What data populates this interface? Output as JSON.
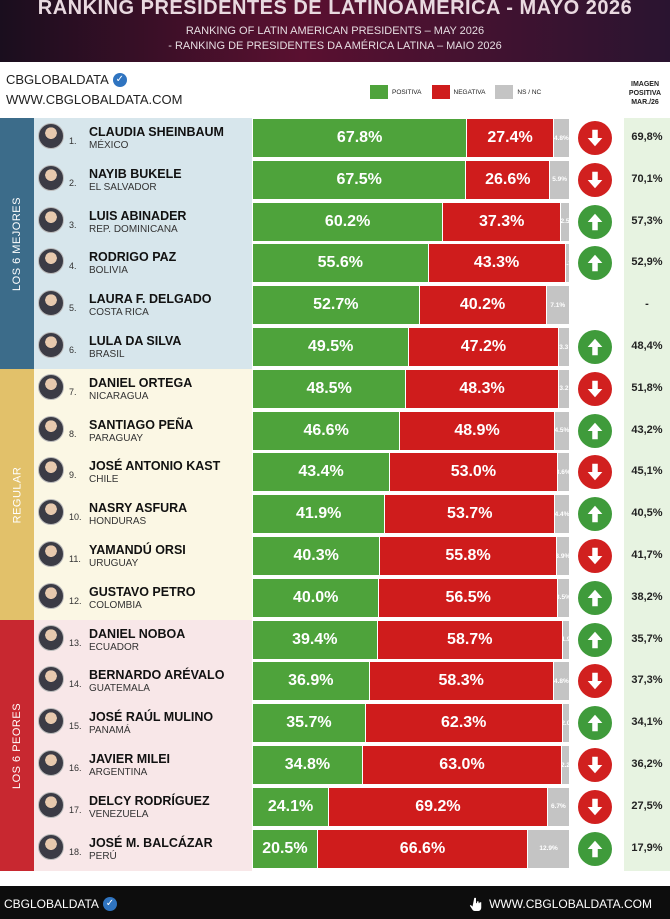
{
  "header": {
    "title": "RANKING PRESIDENTES DE LATINOAMÉRICA - MAYO 2026",
    "subtitle_en": "RANKING OF LATIN AMERICAN PRESIDENTS – MAY 2026",
    "subtitle_pt": "- RANKING DE PRESIDENTES DA AMÉRICA LATINA – MAIO 2026"
  },
  "brand": {
    "name": "CBGLOBALDATA",
    "url": "WWW.CBGLOBALDATA.COM"
  },
  "legend": {
    "positive": "POSITIVA",
    "negative": "NEGATIVA",
    "nsnc": "NS / NC"
  },
  "image_column_header": [
    "IMAGEN",
    "POSITIVA",
    "MAR./26"
  ],
  "sections": {
    "best": "LOS 6 MEJORES",
    "regular": "REGULAR",
    "worst": "LOS 6 PEORES"
  },
  "colors": {
    "positive": "#4ea33b",
    "negative": "#cf1c1c",
    "nsnc": "#c4c4c4",
    "best_band": "#3c6c8a",
    "regular_band": "#e2c16a",
    "worst_band": "#c82830"
  },
  "chart_data": {
    "type": "bar",
    "stacked": true,
    "orientation": "horizontal",
    "series_names": [
      "POSITIVA",
      "NEGATIVA",
      "NS / NC"
    ],
    "rows": [
      {
        "rank": "1.",
        "name": "CLAUDIA SHEINBAUM",
        "country": "MÉXICO",
        "pos": 67.8,
        "neg": 27.4,
        "ns": 4.8,
        "pos_label": "67.8%",
        "neg_label": "27.4%",
        "ns_label": "4.8%",
        "trend": "down",
        "image_mar26": "69,8%"
      },
      {
        "rank": "2.",
        "name": "NAYIB BUKELE",
        "country": "EL SALVADOR",
        "pos": 67.5,
        "neg": 26.6,
        "ns": 5.9,
        "pos_label": "67.5%",
        "neg_label": "26.6%",
        "ns_label": "5.9%",
        "trend": "down",
        "image_mar26": "70,1%"
      },
      {
        "rank": "3.",
        "name": "LUIS ABINADER",
        "country": "REP. DOMINICANA",
        "pos": 60.2,
        "neg": 37.3,
        "ns": 2.5,
        "pos_label": "60.2%",
        "neg_label": "37.3%",
        "ns_label": "2.5",
        "trend": "up",
        "image_mar26": "57,3%"
      },
      {
        "rank": "4.",
        "name": "RODRIGO PAZ",
        "country": "BOLIVIA",
        "pos": 55.6,
        "neg": 43.3,
        "ns": 1.1,
        "pos_label": "55.6%",
        "neg_label": "43.3%",
        "ns_label": "1.1",
        "trend": "up",
        "image_mar26": "52,9%"
      },
      {
        "rank": "5.",
        "name": "LAURA F. DELGADO",
        "country": "COSTA RICA",
        "pos": 52.7,
        "neg": 40.2,
        "ns": 7.1,
        "pos_label": "52.7%",
        "neg_label": "40.2%",
        "ns_label": "7.1%",
        "trend": "none",
        "image_mar26": "-"
      },
      {
        "rank": "6.",
        "name": "LULA DA SILVA",
        "country": "BRASIL",
        "pos": 49.5,
        "neg": 47.2,
        "ns": 3.3,
        "pos_label": "49.5%",
        "neg_label": "47.2%",
        "ns_label": "3.3",
        "trend": "up",
        "image_mar26": "48,4%"
      },
      {
        "rank": "7.",
        "name": "DANIEL ORTEGA",
        "country": "NICARAGUA",
        "pos": 48.5,
        "neg": 48.3,
        "ns": 3.2,
        "pos_label": "48.5%",
        "neg_label": "48.3%",
        "ns_label": "3.2",
        "trend": "down",
        "image_mar26": "51,8%"
      },
      {
        "rank": "8.",
        "name": "SANTIAGO PEÑA",
        "country": "PARAGUAY",
        "pos": 46.6,
        "neg": 48.9,
        "ns": 4.5,
        "pos_label": "46.6%",
        "neg_label": "48.9%",
        "ns_label": "4.5%",
        "trend": "up",
        "image_mar26": "43,2%"
      },
      {
        "rank": "9.",
        "name": "JOSÉ ANTONIO KAST",
        "country": "CHILE",
        "pos": 43.4,
        "neg": 53.0,
        "ns": 3.6,
        "pos_label": "43.4%",
        "neg_label": "53.0%",
        "ns_label": "3.6%",
        "trend": "down",
        "image_mar26": "45,1%"
      },
      {
        "rank": "10.",
        "name": "NASRY ASFURA",
        "country": "HONDURAS",
        "pos": 41.9,
        "neg": 53.7,
        "ns": 4.4,
        "pos_label": "41.9%",
        "neg_label": "53.7%",
        "ns_label": "4.4%",
        "trend": "up",
        "image_mar26": "40,5%"
      },
      {
        "rank": "11.",
        "name": "YAMANDÚ ORSI",
        "country": "URUGUAY",
        "pos": 40.3,
        "neg": 55.8,
        "ns": 3.9,
        "pos_label": "40.3%",
        "neg_label": "55.8%",
        "ns_label": "3.9%",
        "trend": "down",
        "image_mar26": "41,7%"
      },
      {
        "rank": "12.",
        "name": "GUSTAVO PETRO",
        "country": "COLOMBIA",
        "pos": 40.0,
        "neg": 56.5,
        "ns": 3.5,
        "pos_label": "40.0%",
        "neg_label": "56.5%",
        "ns_label": "3.5%",
        "trend": "up",
        "image_mar26": "38,2%"
      },
      {
        "rank": "13.",
        "name": "DANIEL NOBOA",
        "country": "ECUADOR",
        "pos": 39.4,
        "neg": 58.7,
        "ns": 1.9,
        "pos_label": "39.4%",
        "neg_label": "58.7%",
        "ns_label": "1.9",
        "trend": "up",
        "image_mar26": "35,7%"
      },
      {
        "rank": "14.",
        "name": "BERNARDO ARÉVALO",
        "country": "GUATEMALA",
        "pos": 36.9,
        "neg": 58.3,
        "ns": 4.8,
        "pos_label": "36.9%",
        "neg_label": "58.3%",
        "ns_label": "4.8%",
        "trend": "down",
        "image_mar26": "37,3%"
      },
      {
        "rank": "15.",
        "name": "JOSÉ RAÚL MULINO",
        "country": "PANAMÁ",
        "pos": 35.7,
        "neg": 62.3,
        "ns": 2.0,
        "pos_label": "35.7%",
        "neg_label": "62.3%",
        "ns_label": "2.0",
        "trend": "up",
        "image_mar26": "34,1%"
      },
      {
        "rank": "16.",
        "name": "JAVIER MILEI",
        "country": "ARGENTINA",
        "pos": 34.8,
        "neg": 63.0,
        "ns": 2.2,
        "pos_label": "34.8%",
        "neg_label": "63.0%",
        "ns_label": "2.2",
        "trend": "down",
        "image_mar26": "36,2%"
      },
      {
        "rank": "17.",
        "name": "DELCY RODRÍGUEZ",
        "country": "VENEZUELA",
        "pos": 24.1,
        "neg": 69.2,
        "ns": 6.7,
        "pos_label": "24.1%",
        "neg_label": "69.2%",
        "ns_label": "6.7%",
        "trend": "down",
        "image_mar26": "27,5%"
      },
      {
        "rank": "18.",
        "name": "JOSÉ M. BALCÁZAR",
        "country": "PERÚ",
        "pos": 20.5,
        "neg": 66.6,
        "ns": 12.9,
        "pos_label": "20.5%",
        "neg_label": "66.6%",
        "ns_label": "12.9%",
        "trend": "up",
        "image_mar26": "17,9%"
      }
    ]
  },
  "footer": {
    "left": "CBGLOBALDATA",
    "right": "WWW.CBGLOBALDATA.COM"
  }
}
